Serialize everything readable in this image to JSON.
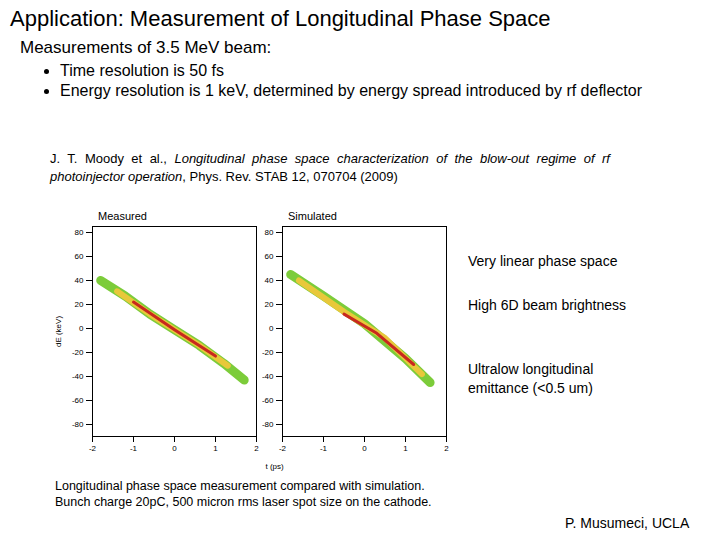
{
  "slide": {
    "title": "Application: Measurement of Longitudinal Phase Space",
    "subtitle": "Measurements of 3.5 MeV beam:",
    "bullets": [
      "Time resolution is 50 fs",
      "Energy resolution is 1 keV, determined by energy spread introduced by rf deflector"
    ],
    "citation": [
      "J. T. Moody et al., ",
      "Longitudinal phase space characterization of the blow-out regime of rf photoinjector operation",
      ", Phys. Rev. STAB 12, 070704 (2009)"
    ],
    "notes": [
      "Very linear phase space",
      "High 6D beam brightness",
      "Ultralow longitudinal emittance (<0.5 um)"
    ],
    "caption": [
      "Longitudinal phase space measurement compared with simulation.",
      "Bunch charge 20pC, 500 micron rms laser spot size on the cathode."
    ],
    "author": "P. Musumeci, UCLA"
  },
  "chart_data": [
    {
      "type": "line",
      "title": "Measured",
      "x_label": null,
      "y_label": "dE (keV)",
      "xlim": [
        -2,
        2
      ],
      "ylim": [
        -90,
        85
      ],
      "xticks": [
        -2,
        -1,
        0,
        1,
        2
      ],
      "yticks": [
        -80,
        -60,
        -40,
        -20,
        0,
        20,
        40,
        60,
        80
      ],
      "tick_labels": true,
      "series": [
        {
          "color": "#7ccc3a",
          "x": [
            -1.8,
            -1.2,
            -0.6,
            0,
            0.6,
            1.2,
            1.7
          ],
          "values": [
            40,
            27,
            12,
            -1,
            -14,
            -29,
            -43
          ]
        },
        {
          "color": "#e8c83a",
          "x": [
            -1.4,
            -0.6,
            0,
            0.6,
            1.3
          ],
          "values": [
            31,
            12,
            -1,
            -14,
            -31
          ]
        },
        {
          "color": "#c8281e",
          "x": [
            -1.0,
            0,
            1.0
          ],
          "values": [
            22,
            -1,
            -23
          ]
        }
      ]
    },
    {
      "type": "line",
      "title": "Simulated",
      "x_label": "t (ps)",
      "y_label": null,
      "xlim": [
        -2,
        2
      ],
      "ylim": [
        -90,
        85
      ],
      "xticks": [
        -2,
        -1,
        0,
        1,
        2
      ],
      "yticks": [
        -80,
        -60,
        -40,
        -20,
        0,
        20,
        40,
        60,
        80
      ],
      "tick_labels": true,
      "series": [
        {
          "color": "#7ccc3a",
          "x": [
            -1.8,
            -1.0,
            0,
            1.0,
            1.6
          ],
          "values": [
            45,
            27,
            4,
            -25,
            -45
          ]
        },
        {
          "color": "#e8c83a",
          "x": [
            -1.6,
            -0.5,
            0.5,
            1.4
          ],
          "values": [
            40,
            14,
            -8,
            -38
          ]
        },
        {
          "color": "#c8281e",
          "x": [
            -0.5,
            0.3,
            1.2
          ],
          "values": [
            12,
            -4,
            -30
          ]
        }
      ]
    }
  ]
}
